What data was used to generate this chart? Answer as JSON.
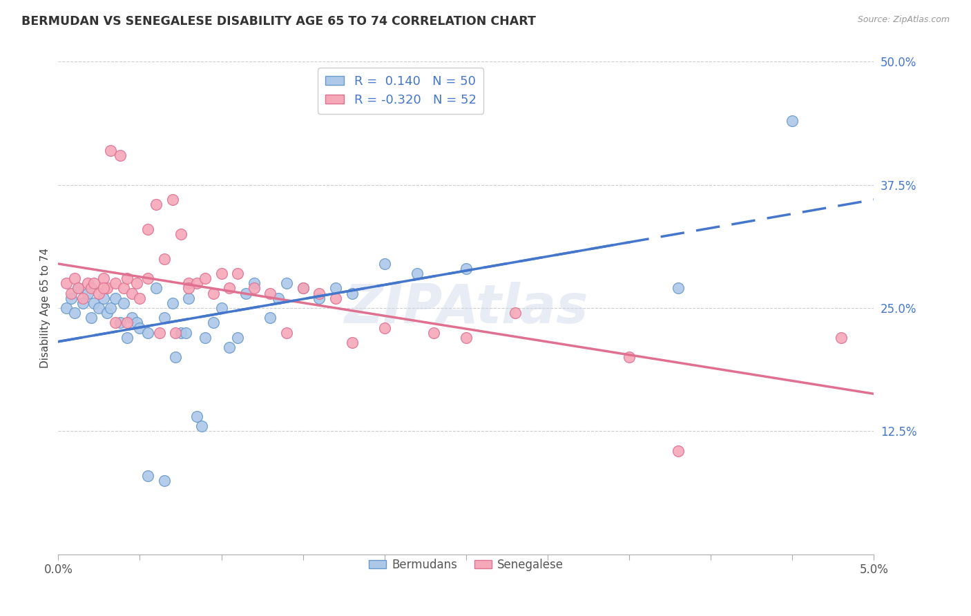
{
  "title": "BERMUDAN VS SENEGALESE DISABILITY AGE 65 TO 74 CORRELATION CHART",
  "source": "Source: ZipAtlas.com",
  "ylabel": "Disability Age 65 to 74",
  "xmin": 0.0,
  "xmax": 5.0,
  "ymin": 0.0,
  "ymax": 50.0,
  "yticks": [
    12.5,
    25.0,
    37.5,
    50.0
  ],
  "ytick_labels": [
    "12.5%",
    "25.0%",
    "37.5%",
    "50.0%"
  ],
  "bermuda_color": "#adc8e8",
  "bermuda_edge": "#6699cc",
  "senegal_color": "#f5a8b8",
  "senegal_edge": "#e07090",
  "line_blue": "#4477cc",
  "line_pink": "#e07090",
  "bermuda_label": "Bermudans",
  "senegal_label": "Senegalese",
  "R_bermuda": 0.14,
  "N_bermuda": 50,
  "R_senegal": -0.32,
  "N_senegal": 52,
  "bermuda_x": [
    0.05,
    0.08,
    0.1,
    0.12,
    0.15,
    0.18,
    0.2,
    0.22,
    0.25,
    0.28,
    0.3,
    0.32,
    0.35,
    0.38,
    0.4,
    0.42,
    0.45,
    0.48,
    0.5,
    0.55,
    0.6,
    0.65,
    0.7,
    0.75,
    0.8,
    0.85,
    0.9,
    0.95,
    1.0,
    1.05,
    1.1,
    1.2,
    1.3,
    1.4,
    1.5,
    1.6,
    1.7,
    1.8,
    2.0,
    2.2,
    2.5,
    0.55,
    0.65,
    0.72,
    0.78,
    0.88,
    1.15,
    1.35,
    3.8,
    4.5
  ],
  "bermuda_y": [
    25.0,
    26.0,
    24.5,
    27.0,
    25.5,
    26.5,
    24.0,
    25.5,
    25.0,
    26.0,
    24.5,
    25.0,
    26.0,
    23.5,
    25.5,
    22.0,
    24.0,
    23.5,
    23.0,
    22.5,
    27.0,
    24.0,
    25.5,
    22.5,
    26.0,
    14.0,
    22.0,
    23.5,
    25.0,
    21.0,
    22.0,
    27.5,
    24.0,
    27.5,
    27.0,
    26.0,
    27.0,
    26.5,
    29.5,
    28.5,
    29.0,
    8.0,
    7.5,
    20.0,
    22.5,
    13.0,
    26.5,
    26.0,
    27.0,
    44.0
  ],
  "senegal_x": [
    0.05,
    0.08,
    0.1,
    0.12,
    0.15,
    0.18,
    0.2,
    0.22,
    0.25,
    0.28,
    0.3,
    0.32,
    0.35,
    0.38,
    0.4,
    0.42,
    0.45,
    0.48,
    0.5,
    0.55,
    0.6,
    0.65,
    0.7,
    0.75,
    0.8,
    0.85,
    0.9,
    0.95,
    1.0,
    1.05,
    1.1,
    1.2,
    1.3,
    1.4,
    1.5,
    1.6,
    1.7,
    1.8,
    2.0,
    2.3,
    2.5,
    2.8,
    3.5,
    0.28,
    0.35,
    0.42,
    0.55,
    0.62,
    0.72,
    0.8,
    3.8,
    4.8
  ],
  "senegal_y": [
    27.5,
    26.5,
    28.0,
    27.0,
    26.0,
    27.5,
    27.0,
    27.5,
    26.5,
    28.0,
    27.0,
    41.0,
    27.5,
    40.5,
    27.0,
    28.0,
    26.5,
    27.5,
    26.0,
    33.0,
    35.5,
    30.0,
    36.0,
    32.5,
    27.5,
    27.5,
    28.0,
    26.5,
    28.5,
    27.0,
    28.5,
    27.0,
    26.5,
    22.5,
    27.0,
    26.5,
    26.0,
    21.5,
    23.0,
    22.5,
    22.0,
    24.5,
    20.0,
    27.0,
    23.5,
    23.5,
    28.0,
    22.5,
    22.5,
    27.0,
    10.5,
    22.0
  ]
}
